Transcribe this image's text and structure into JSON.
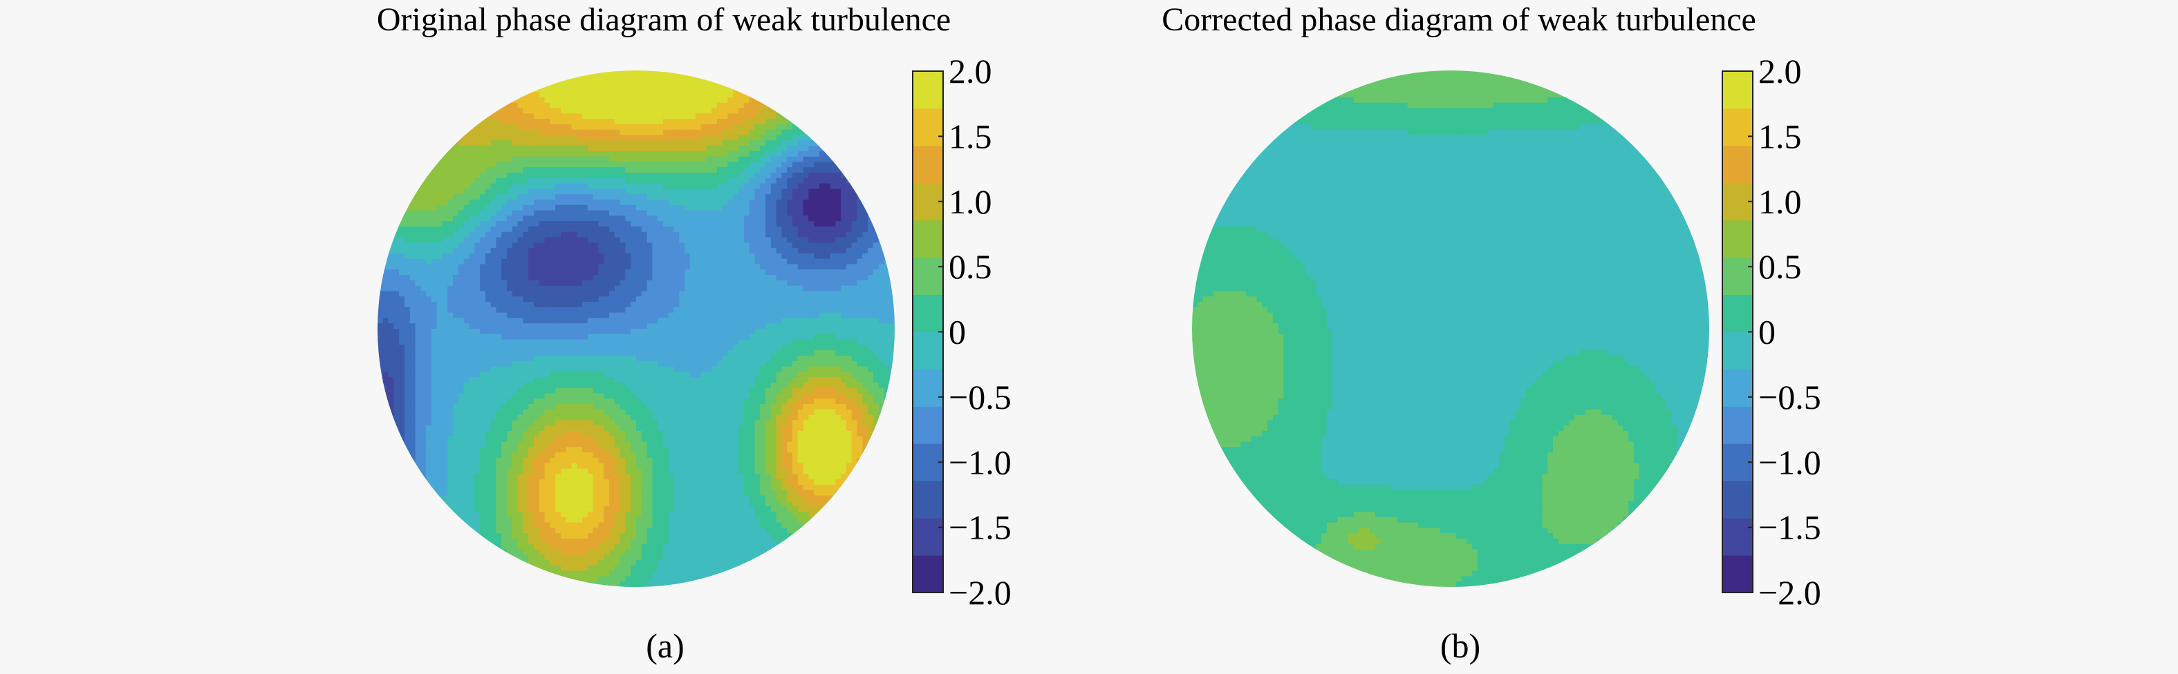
{
  "figure": {
    "captions": [
      "(a)",
      "(b)"
    ]
  },
  "colormap": [
    "#3e2a86",
    "#41479e",
    "#3a5ba9",
    "#3f71c1",
    "#4c8fd6",
    "#4aa8d8",
    "#3fbcbe",
    "#38c296",
    "#68c76a",
    "#8fc23e",
    "#c6b52a",
    "#e3a731",
    "#eabf2c",
    "#d9de2f"
  ],
  "chart_data": [
    {
      "type": "heatmap",
      "title": "Original phase diagram of weak turbulence",
      "caption": "(a)",
      "colorbar": {
        "range": [
          -2.0,
          2.0
        ],
        "tick_values": [
          2.0,
          1.5,
          1.0,
          0.5,
          0,
          -0.5,
          -1.0,
          -1.5,
          -2.0
        ],
        "tick_labels": [
          "2.0",
          "1.5",
          "1.0",
          "0.5",
          "0",
          "−0.5",
          "−1.0",
          "−1.5",
          "−2.0"
        ]
      },
      "base_value": -0.3,
      "features": [
        {
          "x": 0.0,
          "y": 0.95,
          "sx": 0.55,
          "sy": 0.22,
          "value": 2.3
        },
        {
          "x": -0.3,
          "y": 0.28,
          "sx": 0.28,
          "sy": 0.2,
          "value": -1.7
        },
        {
          "x": 0.72,
          "y": 0.5,
          "sx": 0.17,
          "sy": 0.19,
          "value": -2.0
        },
        {
          "x": -0.24,
          "y": -0.64,
          "sx": 0.19,
          "sy": 0.26,
          "value": 1.9
        },
        {
          "x": 0.73,
          "y": -0.46,
          "sx": 0.16,
          "sy": 0.22,
          "value": 2.2
        },
        {
          "x": -0.97,
          "y": -0.3,
          "sx": 0.1,
          "sy": 0.38,
          "value": -1.5
        },
        {
          "x": -0.82,
          "y": 0.52,
          "sx": 0.25,
          "sy": 0.18,
          "value": 0.8
        },
        {
          "x": 0.3,
          "y": 0.04,
          "sx": 0.9,
          "sy": 0.07,
          "value": -0.35
        }
      ]
    },
    {
      "type": "heatmap",
      "title": "Corrected phase diagram of weak turbulence",
      "caption": "(b)",
      "colorbar": {
        "range": [
          -2.0,
          2.0
        ],
        "tick_values": [
          2.0,
          1.5,
          1.0,
          0.5,
          0,
          -0.5,
          -1.0,
          -1.5,
          -2.0
        ],
        "tick_labels": [
          "2.0",
          "1.5",
          "1.0",
          "0.5",
          "0",
          "−0.5",
          "−1.0",
          "−1.5",
          "−2.0"
        ]
      },
      "base_value": -0.2,
      "features": [
        {
          "x": 0.0,
          "y": 0.98,
          "sx": 0.7,
          "sy": 0.14,
          "value": 0.5
        },
        {
          "x": -0.85,
          "y": -0.15,
          "sx": 0.25,
          "sy": 0.35,
          "value": 0.5
        },
        {
          "x": -0.2,
          "y": -0.9,
          "sx": 0.35,
          "sy": 0.18,
          "value": 0.45
        },
        {
          "x": 0.55,
          "y": -0.55,
          "sx": 0.22,
          "sy": 0.3,
          "value": 0.45
        },
        {
          "x": -0.35,
          "y": -0.8,
          "sx": 0.08,
          "sy": 0.06,
          "value": 0.1
        }
      ]
    }
  ]
}
